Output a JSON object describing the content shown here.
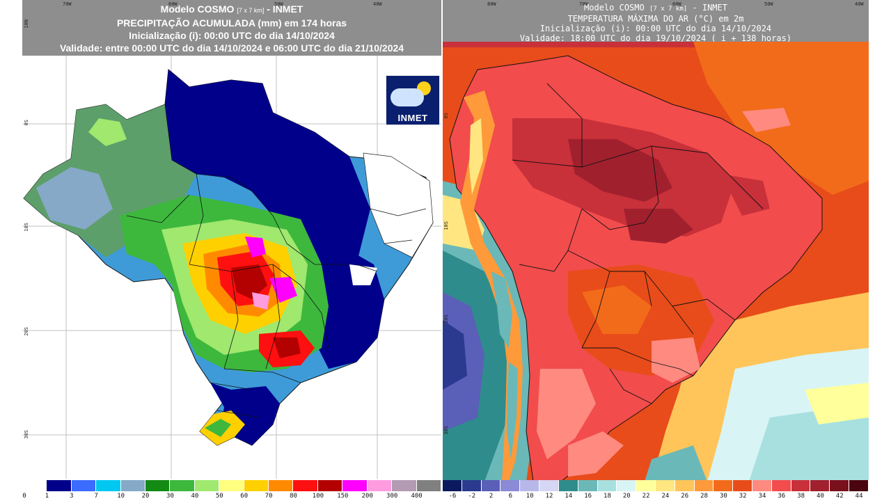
{
  "left_panel": {
    "title_lines": [
      "Modelo COSMO",
      "[7 x 7 km]",
      "- INMET",
      "PRECIPITAÇÃO ACUMULADA (mm) em 174 horas",
      "Inicialização (i): 00:00 UTC do dia 14/10/2024",
      "Validade: entre 00:00 UTC do dia 14/10/2024 e 06:00 UTC do dia 21/10/2024"
    ],
    "top_ticks": [
      "70W",
      "60W",
      "50W",
      "40W"
    ],
    "side_ticks": [
      "10N",
      "0S",
      "10S",
      "20S",
      "30S"
    ],
    "logo_text": "INMET",
    "legend": {
      "labels": [
        "0",
        "1",
        "3",
        "7",
        "10",
        "20",
        "30",
        "40",
        "50",
        "60",
        "70",
        "80",
        "100",
        "150",
        "200",
        "300",
        "400"
      ],
      "colors": [
        "#ffffff",
        "#00008b",
        "#3b6cff",
        "#00c8f0",
        "#85a9c7",
        "#138a13",
        "#3db83d",
        "#a0e86e",
        "#ffff80",
        "#ffd000",
        "#ff8a00",
        "#ff1010",
        "#b30000",
        "#ff00ff",
        "#ff9ce0",
        "#b39bb3",
        "#808080"
      ]
    }
  },
  "right_panel": {
    "title_lines": [
      "Modelo COSMO",
      "[7 x 7 km]",
      "- INMET",
      "TEMPERATURA MÁXIMA DO AR (°C) em 2m",
      "Inicialização (i): 00:00 UTC do dia 14/10/2024",
      "Validade: 18:00 UTC do dia 19/10/2024 ( i + 138 horas)"
    ],
    "top_ticks": [
      "80W",
      "70W",
      "60W",
      "50W",
      "40W"
    ],
    "side_ticks": [
      "0S",
      "10S",
      "20S",
      "30S"
    ],
    "legend": {
      "labels": [
        "-6",
        "-2",
        "2",
        "6",
        "10",
        "12",
        "14",
        "16",
        "18",
        "20",
        "22",
        "24",
        "26",
        "28",
        "30",
        "32",
        "34",
        "36",
        "38",
        "40",
        "42",
        "44"
      ],
      "colors": [
        "#0b1a5e",
        "#2b3a8f",
        "#5a5fb8",
        "#8a8ad6",
        "#b7b7ea",
        "#d6d6f5",
        "#2e8c8c",
        "#6ab8b8",
        "#a8e0e0",
        "#d8f4f4",
        "#ffff9c",
        "#ffe680",
        "#ffc55a",
        "#ff9a3a",
        "#f26b1a",
        "#e84c1a",
        "#ff8a80",
        "#f24c4c",
        "#c8303a",
        "#a0202e",
        "#7a101c",
        "#4a0510"
      ]
    }
  }
}
